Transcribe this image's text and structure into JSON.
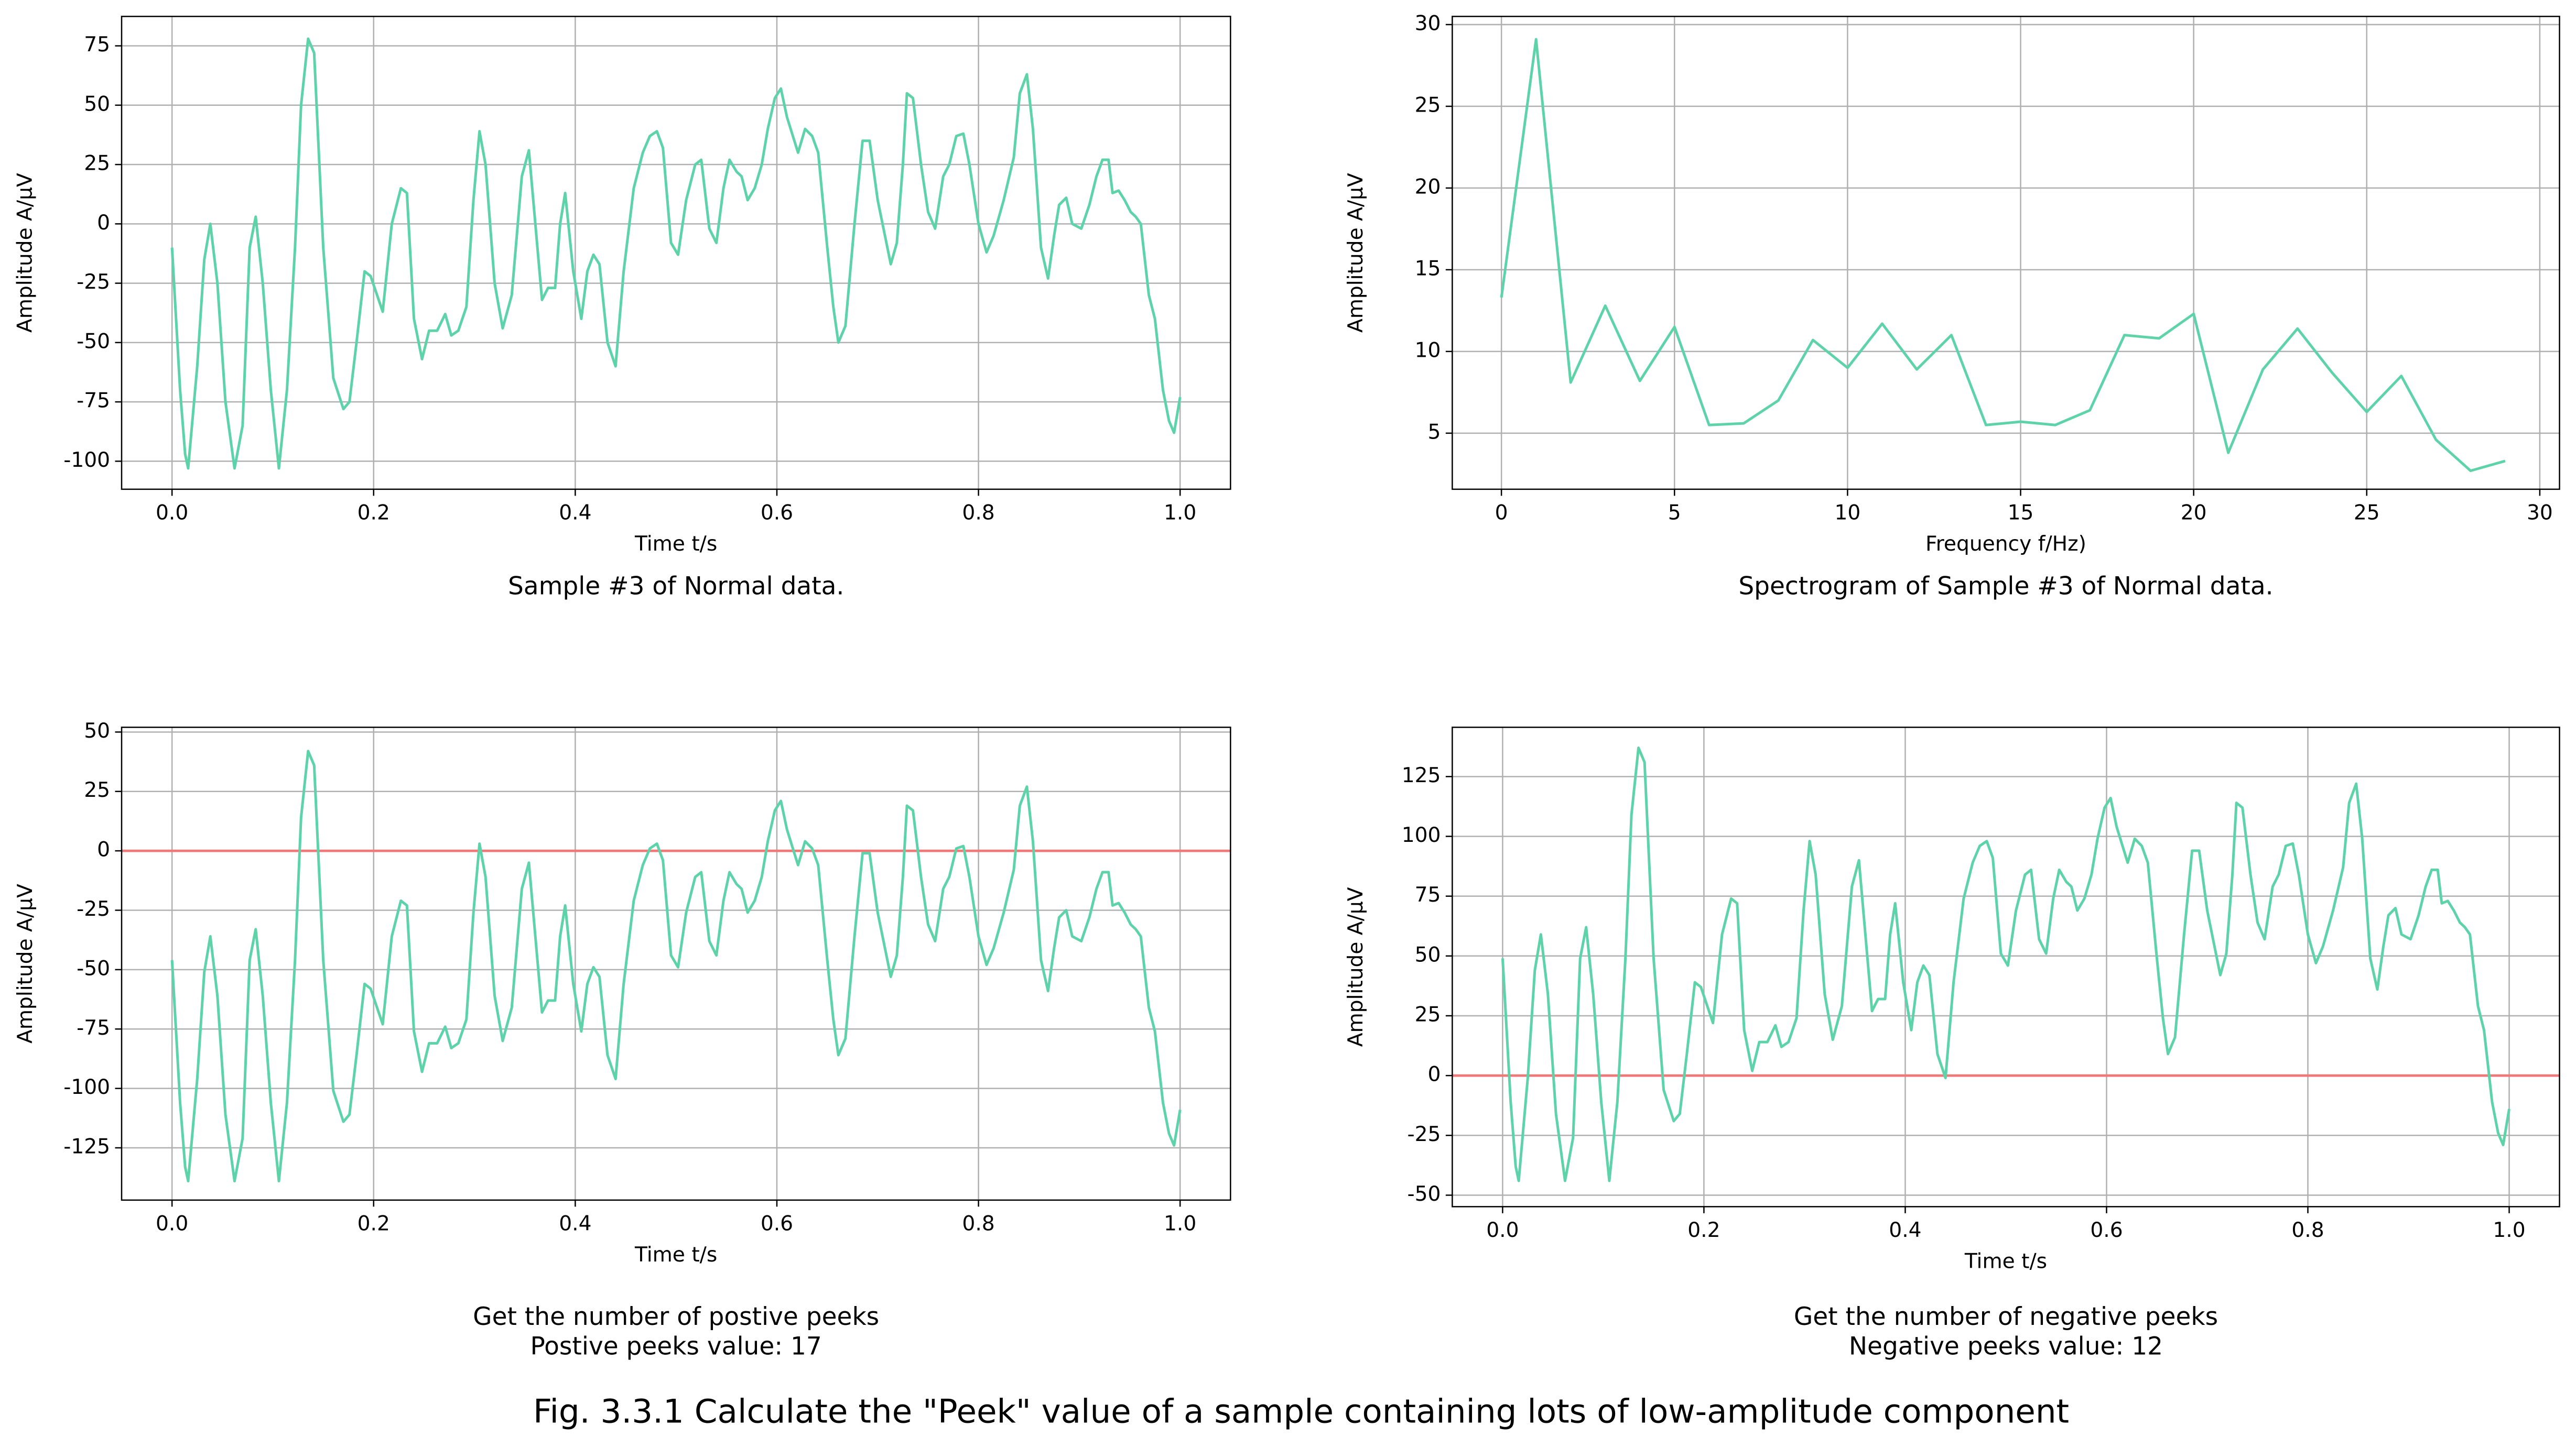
{
  "figure_caption": "Fig. 3.3.1 Calculate the \"Peek\" value of a sample containing lots of low-amplitude component",
  "chart_data": [
    {
      "type": "line",
      "caption": [
        "Sample #3 of Normal data."
      ],
      "xlabel": "Time t/s",
      "ylabel": "Amplitude A/μV",
      "color": "#5ed3aa",
      "grid": true,
      "xlim": [
        -0.05,
        1.05
      ],
      "xticks": [
        {
          "value": 0,
          "label": "0.0"
        },
        0.2,
        0.4,
        0.6,
        0.8,
        {
          "value": 1,
          "label": "1.0"
        }
      ],
      "ylim": [
        -111.8,
        87.4
      ],
      "yticks": [
        -100,
        -75,
        -50,
        -25,
        0,
        25,
        50,
        75
      ],
      "x": [
        0,
        0.008,
        0.013,
        0.016,
        0.025,
        0.032,
        0.038,
        0.045,
        0.053,
        0.062,
        0.07,
        0.077,
        0.083,
        0.09,
        0.098,
        0.106,
        0.114,
        0.122,
        0.128,
        0.135,
        0.141,
        0.15,
        0.16,
        0.17,
        0.176,
        0.183,
        0.191,
        0.197,
        0.209,
        0.218,
        0.227,
        0.233,
        0.24,
        0.248,
        0.255,
        0.263,
        0.271,
        0.277,
        0.284,
        0.292,
        0.299,
        0.305,
        0.311,
        0.32,
        0.328,
        0.337,
        0.347,
        0.354,
        0.367,
        0.373,
        0.38,
        0.385,
        0.39,
        0.398,
        0.406,
        0.412,
        0.418,
        0.424,
        0.432,
        0.44,
        0.448,
        0.458,
        0.467,
        0.474,
        0.481,
        0.487,
        0.495,
        0.502,
        0.51,
        0.519,
        0.525,
        0.533,
        0.54,
        0.547,
        0.553,
        0.56,
        0.565,
        0.571,
        0.578,
        0.585,
        0.591,
        0.598,
        0.604,
        0.61,
        0.621,
        0.628,
        0.635,
        0.641,
        0.65,
        0.656,
        0.661,
        0.668,
        0.677,
        0.685,
        0.692,
        0.7,
        0.713,
        0.719,
        0.725,
        0.729,
        0.735,
        0.743,
        0.75,
        0.757,
        0.765,
        0.771,
        0.778,
        0.785,
        0.791,
        0.8,
        0.808,
        0.815,
        0.825,
        0.835,
        0.841,
        0.848,
        0.854,
        0.862,
        0.869,
        0.875,
        0.88,
        0.887,
        0.893,
        0.902,
        0.91,
        0.917,
        0.923,
        0.929,
        0.933,
        0.939,
        0.945,
        0.951,
        0.956,
        0.961,
        0.969,
        0.975,
        0.983,
        0.989,
        0.994,
        1.0
      ],
      "values": [
        -10,
        -70,
        -97,
        -103,
        -60,
        -15,
        0,
        -25,
        -75,
        -103,
        -85,
        -10,
        3,
        -25,
        -70,
        -103,
        -70,
        -10,
        50,
        78,
        72,
        -10,
        -65,
        -78,
        -75,
        -50,
        -20,
        -22,
        -37,
        0,
        15,
        13,
        -40,
        -57,
        -45,
        -45,
        -38,
        -47,
        -45,
        -35,
        10,
        39,
        25,
        -25,
        -44,
        -30,
        20,
        31,
        -32,
        -27,
        -27,
        0,
        13,
        -20,
        -40,
        -20,
        -13,
        -17,
        -50,
        -60,
        -20,
        15,
        30,
        37,
        39,
        32,
        -8,
        -13,
        10,
        25,
        27,
        -2,
        -8,
        15,
        27,
        22,
        20,
        10,
        15,
        25,
        40,
        53,
        57,
        45,
        30,
        40,
        37,
        30,
        -10,
        -35,
        -50,
        -43,
        0,
        35,
        35,
        10,
        -17,
        -8,
        25,
        55,
        53,
        25,
        5,
        -2,
        20,
        25,
        37,
        38,
        25,
        0,
        -12,
        -5,
        10,
        28,
        55,
        63,
        40,
        -10,
        -23,
        -5,
        8,
        11,
        0,
        -2,
        8,
        20,
        27,
        27,
        13,
        14,
        10,
        5,
        3,
        0,
        -30,
        -40,
        -70,
        -83,
        -88,
        -73
      ]
    },
    {
      "type": "line",
      "caption": [
        "Spectrogram of Sample #3 of Normal data."
      ],
      "xlabel": "Frequency f/Hz)",
      "ylabel": "Amplitude A/μV",
      "color": "#5ed3aa",
      "grid": true,
      "xlim": [
        -1.42,
        30.57
      ],
      "xticks": [
        0,
        5,
        10,
        15,
        20,
        25,
        30
      ],
      "ylim": [
        1.57,
        30.5
      ],
      "yticks": [
        5,
        10,
        15,
        20,
        25,
        30
      ],
      "x": [
        0,
        1,
        2,
        3,
        4,
        5,
        6,
        7,
        8,
        9,
        10,
        11,
        12,
        13,
        14,
        15,
        16,
        17,
        18,
        19,
        20,
        21,
        22,
        23,
        24,
        25,
        26,
        27,
        28,
        29
      ],
      "values": [
        13.3,
        29.1,
        8.1,
        12.8,
        8.2,
        11.5,
        5.5,
        5.6,
        7.0,
        10.7,
        9.0,
        11.7,
        8.9,
        11.0,
        5.5,
        5.7,
        5.5,
        6.4,
        11.0,
        10.8,
        12.3,
        3.8,
        8.9,
        11.4,
        8.7,
        6.3,
        8.5,
        4.6,
        2.7,
        3.3
      ]
    },
    {
      "type": "line",
      "caption": [
        "Get the number of postive peeks",
        "Postive peeks value: 17"
      ],
      "xlabel": "Time t/s",
      "ylabel": "Amplitude A/μV",
      "color": "#5ed3aa",
      "grid": true,
      "hline": {
        "value": 0,
        "color": "#f07878"
      },
      "xlim": [
        -0.05,
        1.05
      ],
      "xticks": [
        {
          "value": 0,
          "label": "0.0"
        },
        0.2,
        0.4,
        0.6,
        0.8,
        {
          "value": 1,
          "label": "1.0"
        }
      ],
      "ylim": [
        -147,
        52
      ],
      "yticks": [
        -125,
        -100,
        -75,
        -50,
        -25,
        0,
        25,
        50
      ],
      "x": [
        0,
        0.008,
        0.013,
        0.016,
        0.025,
        0.032,
        0.038,
        0.045,
        0.053,
        0.062,
        0.07,
        0.077,
        0.083,
        0.09,
        0.098,
        0.106,
        0.114,
        0.122,
        0.128,
        0.135,
        0.141,
        0.15,
        0.16,
        0.17,
        0.176,
        0.183,
        0.191,
        0.197,
        0.209,
        0.218,
        0.227,
        0.233,
        0.24,
        0.248,
        0.255,
        0.263,
        0.271,
        0.277,
        0.284,
        0.292,
        0.299,
        0.305,
        0.311,
        0.32,
        0.328,
        0.337,
        0.347,
        0.354,
        0.367,
        0.373,
        0.38,
        0.385,
        0.39,
        0.398,
        0.406,
        0.412,
        0.418,
        0.424,
        0.432,
        0.44,
        0.448,
        0.458,
        0.467,
        0.474,
        0.481,
        0.487,
        0.495,
        0.502,
        0.51,
        0.519,
        0.525,
        0.533,
        0.54,
        0.547,
        0.553,
        0.56,
        0.565,
        0.571,
        0.578,
        0.585,
        0.591,
        0.598,
        0.604,
        0.61,
        0.621,
        0.628,
        0.635,
        0.641,
        0.65,
        0.656,
        0.661,
        0.668,
        0.677,
        0.685,
        0.692,
        0.7,
        0.713,
        0.719,
        0.725,
        0.729,
        0.735,
        0.743,
        0.75,
        0.757,
        0.765,
        0.771,
        0.778,
        0.785,
        0.791,
        0.8,
        0.808,
        0.815,
        0.825,
        0.835,
        0.841,
        0.848,
        0.854,
        0.862,
        0.869,
        0.875,
        0.88,
        0.887,
        0.893,
        0.902,
        0.91,
        0.917,
        0.923,
        0.929,
        0.933,
        0.939,
        0.945,
        0.951,
        0.956,
        0.961,
        0.969,
        0.975,
        0.983,
        0.989,
        0.994,
        1.0
      ],
      "values": [
        -46,
        -106,
        -133,
        -139,
        -96,
        -51,
        -36,
        -61,
        -111,
        -139,
        -121,
        -46,
        -33,
        -61,
        -106,
        -139,
        -106,
        -46,
        14,
        42,
        36,
        -46,
        -101,
        -114,
        -111,
        -86,
        -56,
        -58,
        -73,
        -36,
        -21,
        -23,
        -76,
        -93,
        -81,
        -81,
        -74,
        -83,
        -81,
        -71,
        -26,
        3,
        -11,
        -61,
        -80,
        -66,
        -16,
        -5,
        -68,
        -63,
        -63,
        -36,
        -23,
        -56,
        -76,
        -56,
        -49,
        -53,
        -86,
        -96,
        -56,
        -21,
        -6,
        1,
        3,
        -4,
        -44,
        -49,
        -26,
        -11,
        -9,
        -38,
        -44,
        -21,
        -9,
        -14,
        -16,
        -26,
        -21,
        -11,
        4,
        17,
        21,
        9,
        -6,
        4,
        1,
        -6,
        -46,
        -71,
        -86,
        -79,
        -36,
        -1,
        -1,
        -26,
        -53,
        -44,
        -11,
        19,
        17,
        -11,
        -31,
        -38,
        -16,
        -11,
        1,
        2,
        -11,
        -36,
        -48,
        -41,
        -26,
        -8,
        19,
        27,
        4,
        -46,
        -59,
        -41,
        -28,
        -25,
        -36,
        -38,
        -28,
        -16,
        -9,
        -9,
        -23,
        -22,
        -26,
        -31,
        -33,
        -36,
        -66,
        -76,
        -106,
        -119,
        -124,
        -109
      ]
    },
    {
      "type": "line",
      "caption": [
        "Get the number of negative peeks",
        "Negative peeks value: 12"
      ],
      "xlabel": "Time t/s",
      "ylabel": "Amplitude A/μV",
      "color": "#5ed3aa",
      "grid": true,
      "hline": {
        "value": 0,
        "color": "#f07878"
      },
      "xlim": [
        -0.05,
        1.05
      ],
      "xticks": [
        {
          "value": 0,
          "label": "0.0"
        },
        0.2,
        0.4,
        0.6,
        0.8,
        {
          "value": 1,
          "label": "1.0"
        }
      ],
      "ylim": [
        -54.8,
        145.6
      ],
      "yticks": [
        -50,
        -25,
        0,
        25,
        50,
        75,
        100,
        125
      ],
      "x": [
        0,
        0.008,
        0.013,
        0.016,
        0.025,
        0.032,
        0.038,
        0.045,
        0.053,
        0.062,
        0.07,
        0.077,
        0.083,
        0.09,
        0.098,
        0.106,
        0.114,
        0.122,
        0.128,
        0.135,
        0.141,
        0.15,
        0.16,
        0.17,
        0.176,
        0.183,
        0.191,
        0.197,
        0.209,
        0.218,
        0.227,
        0.233,
        0.24,
        0.248,
        0.255,
        0.263,
        0.271,
        0.277,
        0.284,
        0.292,
        0.299,
        0.305,
        0.311,
        0.32,
        0.328,
        0.337,
        0.347,
        0.354,
        0.367,
        0.373,
        0.38,
        0.385,
        0.39,
        0.398,
        0.406,
        0.412,
        0.418,
        0.424,
        0.432,
        0.44,
        0.448,
        0.458,
        0.467,
        0.474,
        0.481,
        0.487,
        0.495,
        0.502,
        0.51,
        0.519,
        0.525,
        0.533,
        0.54,
        0.547,
        0.553,
        0.56,
        0.565,
        0.571,
        0.578,
        0.585,
        0.591,
        0.598,
        0.604,
        0.61,
        0.621,
        0.628,
        0.635,
        0.641,
        0.65,
        0.656,
        0.661,
        0.668,
        0.677,
        0.685,
        0.692,
        0.7,
        0.713,
        0.719,
        0.725,
        0.729,
        0.735,
        0.743,
        0.75,
        0.757,
        0.765,
        0.771,
        0.778,
        0.785,
        0.791,
        0.8,
        0.808,
        0.815,
        0.825,
        0.835,
        0.841,
        0.848,
        0.854,
        0.862,
        0.869,
        0.875,
        0.88,
        0.887,
        0.893,
        0.902,
        0.91,
        0.917,
        0.923,
        0.929,
        0.933,
        0.939,
        0.945,
        0.951,
        0.956,
        0.961,
        0.969,
        0.975,
        0.983,
        0.989,
        0.994,
        1.0
      ],
      "values": [
        49,
        -11,
        -38,
        -44,
        -1,
        44,
        59,
        34,
        -16,
        -44,
        -26,
        49,
        62,
        34,
        -11,
        -44,
        -11,
        49,
        109,
        137,
        131,
        49,
        -6,
        -19,
        -16,
        9,
        39,
        37,
        22,
        59,
        74,
        72,
        19,
        2,
        14,
        14,
        21,
        12,
        14,
        24,
        69,
        98,
        84,
        34,
        15,
        29,
        79,
        90,
        27,
        32,
        32,
        59,
        72,
        39,
        19,
        39,
        46,
        42,
        9,
        -1,
        39,
        74,
        89,
        96,
        98,
        91,
        51,
        46,
        69,
        84,
        86,
        57,
        51,
        74,
        86,
        81,
        79,
        69,
        74,
        84,
        99,
        112,
        116,
        104,
        89,
        99,
        96,
        89,
        49,
        24,
        9,
        16,
        59,
        94,
        94,
        69,
        42,
        51,
        84,
        114,
        112,
        84,
        64,
        57,
        79,
        84,
        96,
        97,
        84,
        59,
        47,
        54,
        69,
        87,
        114,
        122,
        99,
        49,
        36,
        54,
        67,
        70,
        59,
        57,
        67,
        79,
        86,
        86,
        72,
        73,
        69,
        64,
        62,
        59,
        29,
        19,
        -11,
        -24,
        -29,
        -14
      ]
    }
  ]
}
